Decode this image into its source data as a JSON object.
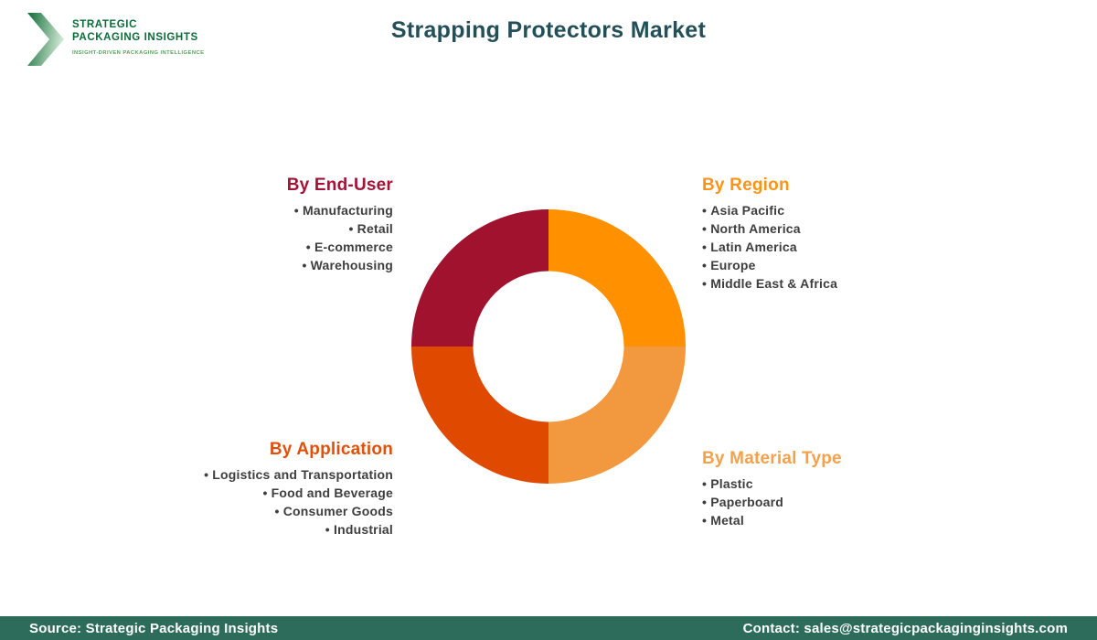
{
  "title": "Strapping Protectors Market",
  "logo": {
    "line1": "STRATEGIC",
    "line2": "PACKAGING INSIGHTS",
    "tagline": "INSIGHT-DRIVEN PACKAGING INTELLIGENCE",
    "chevron_dark": "#0E6B35",
    "chevron_light": "#CDE6D2"
  },
  "groups": [
    {
      "heading": "By End-User",
      "color": "#A31336",
      "items": [
        "Manufacturing",
        "Retail",
        "E-commerce",
        "Warehousing"
      ]
    },
    {
      "heading": "By Region",
      "color": "#FB9417",
      "items": [
        "Asia Pacific",
        "North America",
        "Latin America",
        "Europe",
        "Middle East & Africa"
      ]
    },
    {
      "heading": "By Application",
      "color": "#E0500A",
      "items": [
        "Logistics and Transportation",
        "Food and Beverage",
        "Consumer Goods",
        "Industrial"
      ]
    },
    {
      "heading": "By Material Type",
      "color": "#F5A04B",
      "items": [
        "Plastic",
        "Paperboard",
        "Metal"
      ]
    }
  ],
  "chart_data": {
    "type": "pie",
    "donut": true,
    "title": "Strapping Protectors Market",
    "categories": [
      "By Region",
      "By Material Type",
      "By Application",
      "By End-User"
    ],
    "values": [
      25,
      25,
      25,
      25
    ],
    "colors": [
      "#FF9100",
      "#F2993F",
      "#DF4A00",
      "#A1122F"
    ],
    "start_angle_deg": 0,
    "inner_radius_ratio": 0.55,
    "legend_position": "around-chart"
  },
  "footer": {
    "source": "Source: Strategic Packaging Insights",
    "contact": "Contact: sales@strategicpackaginginsights.com",
    "background": "#2D6C5B"
  }
}
